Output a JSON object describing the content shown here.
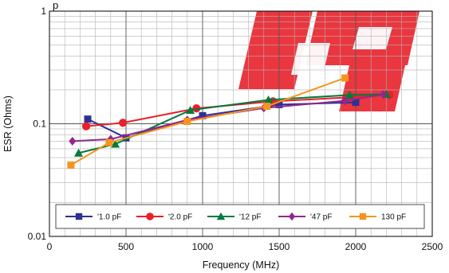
{
  "chart_data": {
    "type": "line",
    "title_fragment": "p",
    "xlabel": "Frequency (MHz)",
    "ylabel": "ESR (Ohms)",
    "xlim": [
      0,
      2500
    ],
    "ylim": [
      0.01,
      1
    ],
    "y_scale": "log",
    "grid": true,
    "legend_position": "bottom-inside",
    "x_ticks": [
      "0",
      "500",
      "1000",
      "1500",
      "2000",
      "2500"
    ],
    "y_ticks": [
      {
        "value": 1,
        "label": "1"
      },
      {
        "value": 0.1,
        "label": "0.1"
      },
      {
        "value": 0.01,
        "label": "0.01"
      }
    ],
    "series": [
      {
        "name": "'1.0 pF",
        "color": "#2e3192",
        "marker": "square",
        "points": [
          [
            250,
            0.11
          ],
          [
            500,
            0.075
          ],
          [
            1000,
            0.118
          ],
          [
            1500,
            0.148
          ],
          [
            2000,
            0.155
          ]
        ]
      },
      {
        "name": "'2.0 pF",
        "color": "#e8202a",
        "marker": "circle",
        "points": [
          [
            240,
            0.095
          ],
          [
            480,
            0.102
          ],
          [
            960,
            0.137
          ],
          [
            1460,
            0.158
          ],
          [
            1970,
            0.172
          ],
          [
            2220,
            0.18
          ]
        ]
      },
      {
        "name": "'12 pF",
        "color": "#007a3d",
        "marker": "triangle",
        "points": [
          [
            190,
            0.055
          ],
          [
            430,
            0.066
          ],
          [
            920,
            0.132
          ],
          [
            1430,
            0.163
          ],
          [
            1960,
            0.18
          ],
          [
            2200,
            0.183
          ]
        ]
      },
      {
        "name": "'47 pF",
        "color": "#92278f",
        "marker": "diamond",
        "points": [
          [
            150,
            0.07
          ],
          [
            400,
            0.073
          ],
          [
            900,
            0.108
          ],
          [
            1400,
            0.138
          ],
          [
            1930,
            0.16
          ],
          [
            2180,
            0.182
          ]
        ]
      },
      {
        "name": "130 pF",
        "color": "#f7941d",
        "marker": "square",
        "points": [
          [
            140,
            0.043
          ],
          [
            390,
            0.068
          ],
          [
            900,
            0.105
          ],
          [
            1420,
            0.143
          ],
          [
            1930,
            0.255
          ]
        ]
      }
    ]
  },
  "watermark": {
    "color": "#e8202a"
  }
}
